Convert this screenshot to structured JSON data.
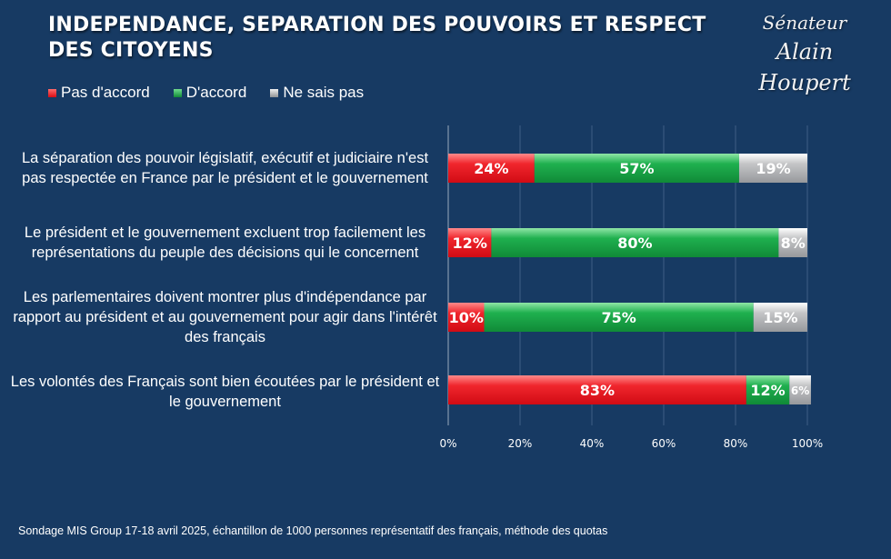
{
  "title": "INDEPENDANCE, SEPARATION DES POUVOIRS ET RESPECT DES CITOYENS",
  "signature": {
    "line1": "Sénateur",
    "line2": "Alain Houpert"
  },
  "footnote": "Sondage MIS Group 17-18 avril 2025, échantillon de 1000 personnes représentatif des français, méthode des quotas",
  "colors": {
    "background": "#173a63",
    "pas_daccord": "#e8121b",
    "daccord": "#17a446",
    "ne_sais_pas": "#a9aaad"
  },
  "chart_data": {
    "type": "bar",
    "orientation": "horizontal",
    "stacked": true,
    "categories": [
      "La séparation des pouvoir législatif, exécutif et judiciaire n'est pas respectée en France par le président et le gouvernement",
      "Le président et le gouvernement excluent trop facilement les représentations du peuple des décisions qui le concernent",
      "Les parlementaires doivent montrer plus d'indépendance par rapport au président et au gouvernement pour agir dans l'intérêt des français",
      "Les volontés des Français sont bien écoutées par le président et le gouvernement"
    ],
    "series": [
      {
        "name": "Pas d'accord",
        "values": [
          24,
          12,
          10,
          83
        ],
        "labels": [
          "24%",
          "12%",
          "10%",
          "83%"
        ]
      },
      {
        "name": "D'accord",
        "values": [
          57,
          80,
          75,
          12
        ],
        "labels": [
          "57%",
          "80%",
          "75%",
          "12%"
        ]
      },
      {
        "name": "Ne sais pas",
        "values": [
          19,
          8,
          15,
          6
        ],
        "labels": [
          "19%",
          "8%",
          "15%",
          "6%"
        ]
      }
    ],
    "xlim": [
      0,
      100
    ],
    "xticks": [
      "0%",
      "20%",
      "40%",
      "60%",
      "80%",
      "100%"
    ],
    "grid": true,
    "legend": "top-left"
  }
}
